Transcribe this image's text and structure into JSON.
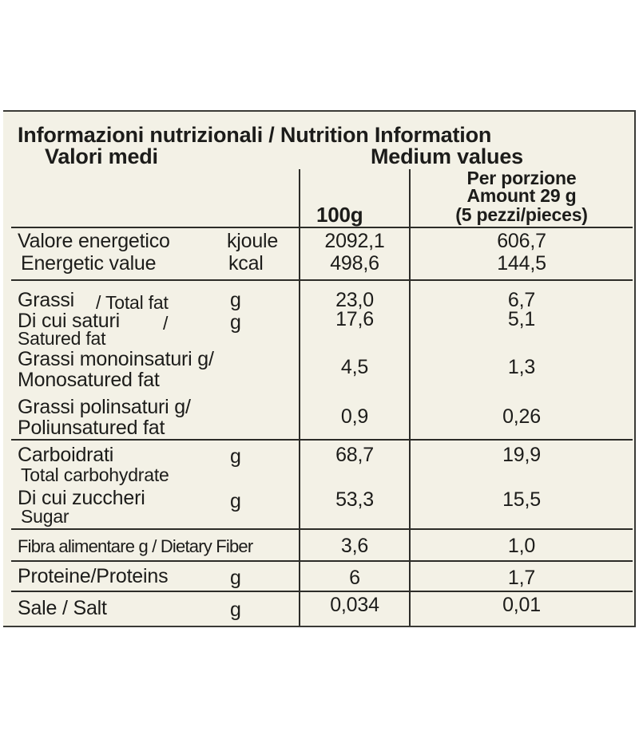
{
  "header": {
    "title": "Informazioni nutrizionali / Nutrition Information",
    "subtitle_it": "Valori medi",
    "subtitle_en": "Medium values"
  },
  "columns": {
    "per100": "100g",
    "portion_line1": "Per porzione",
    "portion_line2": "Amount 29 g",
    "portion_line3": "(5 pezzi/pieces)"
  },
  "rows": {
    "energy": {
      "label_it": "Valore energetico",
      "label_en": "Energetic value",
      "unit_kj": "kjoule",
      "unit_kcal": "kcal",
      "kj_100g": "2092,1",
      "kcal_100g": "498,6",
      "kj_portion": "606,7",
      "kcal_portion": "144,5"
    },
    "total_fat": {
      "label_it": "Grassi",
      "label_en": "/ Total fat",
      "unit": "g",
      "per100": "23,0",
      "portion": "6,7"
    },
    "saturated_fat": {
      "label_it": "Di cui saturi",
      "slash": "/",
      "label_en": "Satured fat",
      "unit": "g",
      "per100": "17,6",
      "portion": "5,1"
    },
    "mono_fat": {
      "label_line1": "Grassi monoinsaturi g/",
      "label_line2": "Monosatured fat",
      "per100": "4,5",
      "portion": "1,3"
    },
    "poly_fat": {
      "label_line1": "Grassi polinsaturi g/",
      "label_line2": "Poliunsatured fat",
      "per100": "0,9",
      "portion": "0,26"
    },
    "carbs": {
      "label_it": "Carboidrati",
      "label_en": "Total carbohydrate",
      "unit": "g",
      "per100": "68,7",
      "portion": "19,9"
    },
    "sugar": {
      "label_it": "Di cui zuccheri",
      "label_en": "Sugar",
      "unit": "g",
      "per100": "53,3",
      "portion": "15,5"
    },
    "fiber": {
      "label": "Fibra alimentare g / Dietary Fiber",
      "per100": "3,6",
      "portion": "1,0"
    },
    "protein": {
      "label": "Proteine/Proteins",
      "unit": "g",
      "per100": "6",
      "portion": "1,7"
    },
    "salt": {
      "label": "Sale / Salt",
      "unit": "g",
      "per100": "0,034",
      "portion": "0,01"
    }
  },
  "colors": {
    "panel_background": "#f3f1e6",
    "rule_color": "#2c2c28",
    "text_color": "#1c1c1a"
  }
}
